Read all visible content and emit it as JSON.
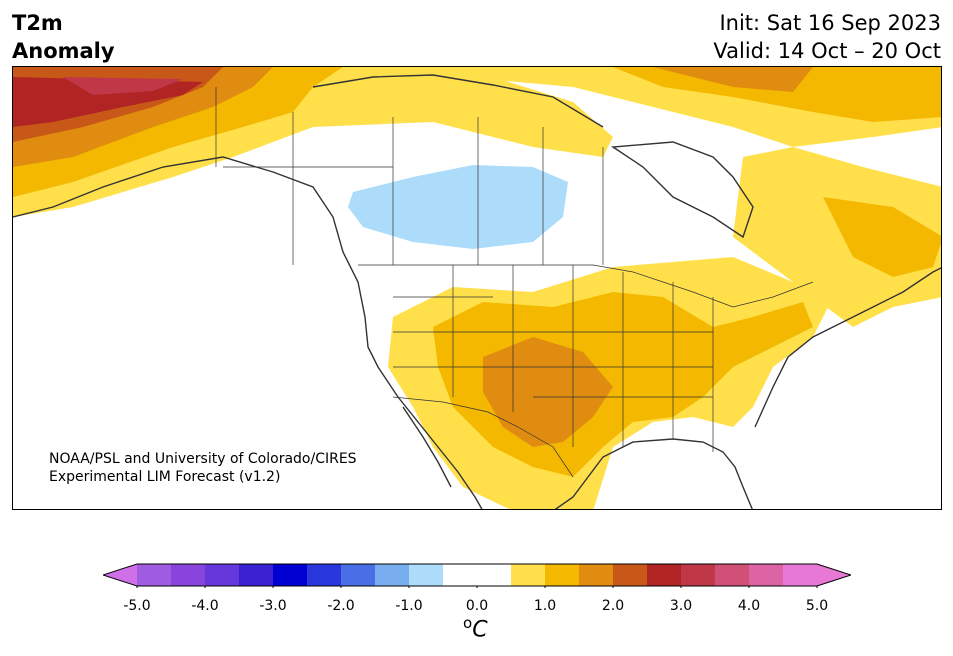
{
  "title": {
    "line1": "T2m",
    "line2": "Anomaly"
  },
  "dates": {
    "init": "Init: Sat 16 Sep 2023",
    "valid": "Valid: 14 Oct – 20 Oct"
  },
  "credit": {
    "line1": "NOAA/PSL and University of Colorado/CIRES",
    "line2": "Experimental LIM Forecast (v1.2)"
  },
  "colorbar": {
    "unit_main": "C",
    "unit_sup": "o",
    "ticks": [
      "-5.0",
      "-4.0",
      "-3.0",
      "-2.0",
      "-1.0",
      "0.0",
      "1.0",
      "2.0",
      "3.0",
      "4.0",
      "5.0"
    ],
    "tick_values": [
      -5,
      -4,
      -3,
      -2,
      -1,
      0,
      1,
      2,
      3,
      4,
      5
    ],
    "bins": [
      {
        "from": -5.0,
        "to": -4.5,
        "color": "#a05ce0"
      },
      {
        "from": -4.5,
        "to": -4.0,
        "color": "#8844dd"
      },
      {
        "from": -4.0,
        "to": -3.5,
        "color": "#6638dc"
      },
      {
        "from": -3.5,
        "to": -3.0,
        "color": "#3a22d2"
      },
      {
        "from": -3.0,
        "to": -2.5,
        "color": "#0000d2"
      },
      {
        "from": -2.5,
        "to": -2.0,
        "color": "#2838dc"
      },
      {
        "from": -2.0,
        "to": -1.5,
        "color": "#4a6ee6"
      },
      {
        "from": -1.5,
        "to": -1.0,
        "color": "#78aef0"
      },
      {
        "from": -1.0,
        "to": -0.5,
        "color": "#acdcfa"
      },
      {
        "from": -0.5,
        "to": 0.5,
        "color": "#ffffff"
      },
      {
        "from": 0.5,
        "to": 1.0,
        "color": "#ffe04a"
      },
      {
        "from": 1.0,
        "to": 1.5,
        "color": "#f4b800"
      },
      {
        "from": 1.5,
        "to": 2.0,
        "color": "#e08c10"
      },
      {
        "from": 2.0,
        "to": 2.5,
        "color": "#c85818"
      },
      {
        "from": 2.5,
        "to": 3.0,
        "color": "#b02424"
      },
      {
        "from": 3.0,
        "to": 3.5,
        "color": "#c03848"
      },
      {
        "from": 3.5,
        "to": 4.0,
        "color": "#d05078"
      },
      {
        "from": 4.0,
        "to": 4.5,
        "color": "#dc64a4"
      },
      {
        "from": 4.5,
        "to": 5.0,
        "color": "#e878d6"
      }
    ],
    "under_color": "#d070e8",
    "over_color": "#e878d6"
  },
  "palette": {
    "light_yellow": "#ffe04a",
    "yellow": "#f4b800",
    "orange": "#e08c10",
    "dark_orange": "#c85818",
    "red": "#b02424",
    "crimson": "#c03848",
    "light_blue": "#acdcfa",
    "coast": "#333333"
  }
}
